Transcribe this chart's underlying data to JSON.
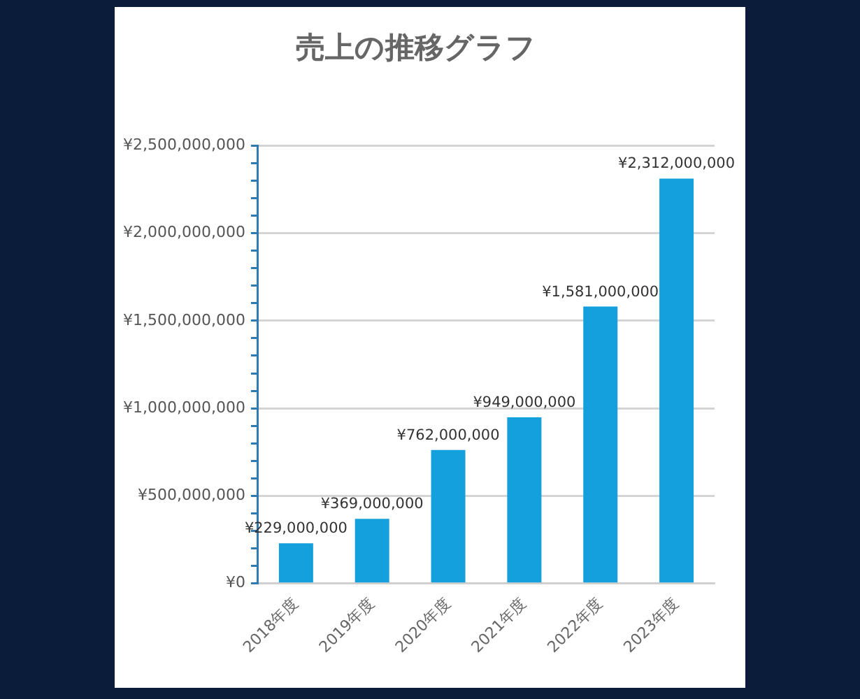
{
  "chart_data": {
    "type": "bar",
    "title": "売上の推移グラフ",
    "categories": [
      "2018年度",
      "2019年度",
      "2020年度",
      "2021年度",
      "2022年度",
      "2023年度"
    ],
    "values": [
      229000000,
      369000000,
      762000000,
      949000000,
      1581000000,
      2312000000
    ],
    "value_labels": [
      "¥229,000,000",
      "¥369,000,000",
      "¥762,000,000",
      "¥949,000,000",
      "¥1,581,000,000",
      "¥2,312,000,000"
    ],
    "color": "#13a0dc",
    "ylim": [
      0,
      2500000000
    ],
    "yticks": [
      {
        "value": 0,
        "label": "¥0"
      },
      {
        "value": 100000000,
        "label": null
      },
      {
        "value": 200000000,
        "label": null
      },
      {
        "value": 300000000,
        "label": null
      },
      {
        "value": 400000000,
        "label": null
      },
      {
        "value": 500000000,
        "label": "¥500,000,000"
      },
      {
        "value": 600000000,
        "label": null
      },
      {
        "value": 700000000,
        "label": null
      },
      {
        "value": 800000000,
        "label": null
      },
      {
        "value": 900000000,
        "label": null
      },
      {
        "value": 1000000000,
        "label": "¥1,000,000,000"
      },
      {
        "value": 1100000000,
        "label": null
      },
      {
        "value": 1200000000,
        "label": null
      },
      {
        "value": 1300000000,
        "label": null
      },
      {
        "value": 1400000000,
        "label": null
      },
      {
        "value": 1500000000,
        "label": "¥1,500,000,000"
      },
      {
        "value": 1600000000,
        "label": null
      },
      {
        "value": 1700000000,
        "label": null
      },
      {
        "value": 1800000000,
        "label": null
      },
      {
        "value": 1900000000,
        "label": null
      },
      {
        "value": 2000000000,
        "label": "¥2,000,000,000"
      },
      {
        "value": 2100000000,
        "label": null
      },
      {
        "value": 2200000000,
        "label": null
      },
      {
        "value": 2300000000,
        "label": null
      },
      {
        "value": 2400000000,
        "label": null
      },
      {
        "value": 2500000000,
        "label": "¥2,500,000,000"
      }
    ],
    "grid": "y"
  }
}
